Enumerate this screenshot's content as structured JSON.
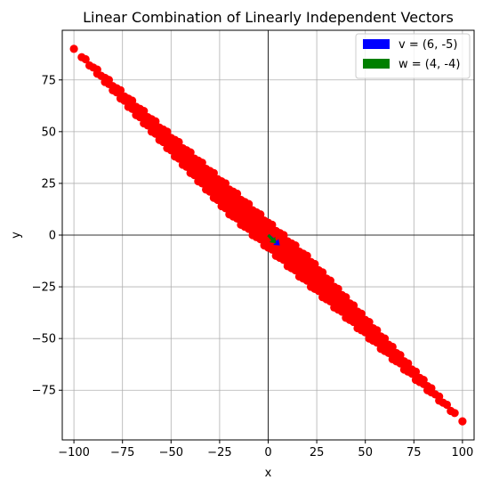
{
  "chart_data": {
    "type": "scatter",
    "title": "Linear Combination of Linearly Independent Vectors",
    "xlabel": "x",
    "ylabel": "y",
    "xlim": [
      -106,
      106
    ],
    "ylim": [
      -99,
      99
    ],
    "xticks": [
      -100,
      -75,
      -50,
      -25,
      0,
      25,
      50,
      75,
      100
    ],
    "yticks": [
      -75,
      -50,
      -25,
      0,
      25,
      50,
      75
    ],
    "xtick_labels": [
      "−100",
      "−75",
      "−50",
      "−25",
      "0",
      "25",
      "50",
      "75",
      "100"
    ],
    "ytick_labels": [
      "−75",
      "−50",
      "−25",
      "0",
      "25",
      "50",
      "75"
    ],
    "grid": true,
    "legend_position": "top-right",
    "points": {
      "description_rule": "a*v + b*w for integer a, b in [-10, 10]",
      "coef_range": [
        -10,
        10
      ],
      "color": "#ff0000"
    },
    "vectors": [
      {
        "name": "v = (6, -5)",
        "components": [
          6,
          -5
        ],
        "color": "#0000ff"
      },
      {
        "name": "w = (4, -4)",
        "components": [
          4,
          -4
        ],
        "color": "#008000"
      }
    ]
  }
}
